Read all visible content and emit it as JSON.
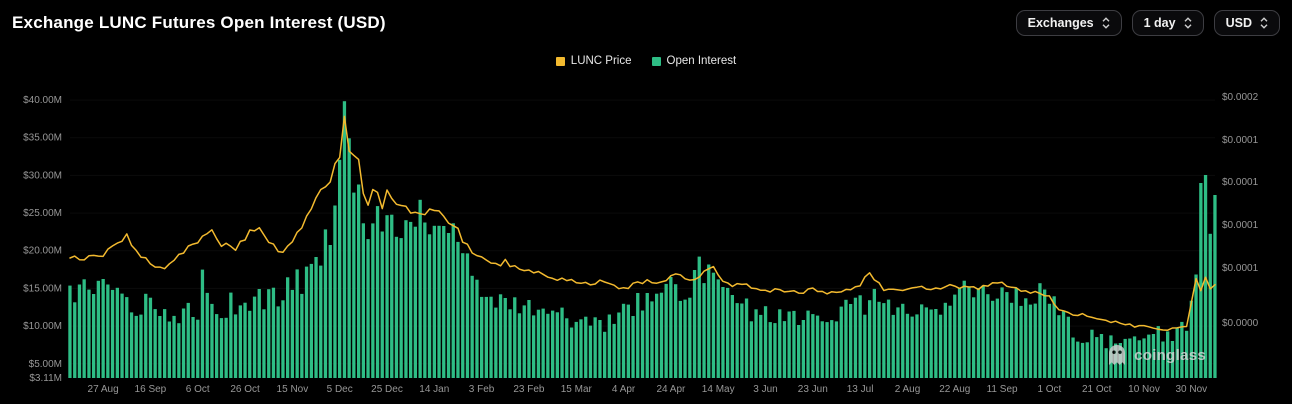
{
  "header": {
    "title": "Exchange LUNC Futures Open Interest (USD)",
    "controls": [
      {
        "label": "Exchanges"
      },
      {
        "label": "1 day"
      },
      {
        "label": "USD"
      }
    ]
  },
  "legend": [
    {
      "label": "LUNC Price",
      "color": "#F3BA2F"
    },
    {
      "label": "Open Interest",
      "color": "#2EBD85"
    }
  ],
  "watermark": {
    "text": "coinglass"
  },
  "chart_data": {
    "type": "bar",
    "title": "Exchange LUNC Futures Open Interest (USD)",
    "legend_position": "top-center",
    "grid": "off",
    "x_axis": {
      "unit": "days-from-first-tick",
      "domain_days": [
        -14,
        470
      ],
      "ticks": [
        {
          "label": "27 Aug",
          "day": 0
        },
        {
          "label": "16 Sep",
          "day": 20
        },
        {
          "label": "6 Oct",
          "day": 40
        },
        {
          "label": "26 Oct",
          "day": 60
        },
        {
          "label": "15 Nov",
          "day": 80
        },
        {
          "label": "5 Dec",
          "day": 100
        },
        {
          "label": "25 Dec",
          "day": 120
        },
        {
          "label": "14 Jan",
          "day": 140
        },
        {
          "label": "3 Feb",
          "day": 160
        },
        {
          "label": "23 Feb",
          "day": 180
        },
        {
          "label": "15 Mar",
          "day": 200
        },
        {
          "label": "4 Apr",
          "day": 220
        },
        {
          "label": "24 Apr",
          "day": 240
        },
        {
          "label": "14 May",
          "day": 260
        },
        {
          "label": "3 Jun",
          "day": 280
        },
        {
          "label": "23 Jun",
          "day": 300
        },
        {
          "label": "13 Jul",
          "day": 320
        },
        {
          "label": "2 Aug",
          "day": 340
        },
        {
          "label": "22 Aug",
          "day": 360
        },
        {
          "label": "11 Sep",
          "day": 380
        },
        {
          "label": "1 Oct",
          "day": 400
        },
        {
          "label": "21 Oct",
          "day": 420
        },
        {
          "label": "10 Nov",
          "day": 440
        },
        {
          "label": "30 Nov",
          "day": 460
        }
      ]
    },
    "y_left": {
      "unit": "USD millions (open interest)",
      "top_value": 42,
      "baseline_value": 3.11,
      "ticks": [
        {
          "label": "$40.00M",
          "value": 40
        },
        {
          "label": "$35.00M",
          "value": 35
        },
        {
          "label": "$30.00M",
          "value": 30
        },
        {
          "label": "$25.00M",
          "value": 25
        },
        {
          "label": "$20.00M",
          "value": 20
        },
        {
          "label": "$15.00M",
          "value": 15
        },
        {
          "label": "$10.00M",
          "value": 10
        },
        {
          "label": "$5.00M",
          "value": 5
        },
        {
          "label": "$3.11M",
          "value": 3.11
        }
      ]
    },
    "y_right": {
      "unit": "USD (LUNC price)",
      "top_value": 0.00018,
      "baseline_value": 0,
      "ticks": [
        {
          "label": "$0.0002",
          "value": 0.0001726
        },
        {
          "label": "$0.0001",
          "value": 0.0001462
        },
        {
          "label": "$0.0001",
          "value": 0.0001204
        },
        {
          "label": "$0.0001",
          "value": 9.4e-05
        },
        {
          "label": "$0.0001",
          "value": 6.76e-05
        },
        {
          "label": "$0.0000",
          "value": 3.38e-05
        }
      ]
    },
    "x": [
      0,
      5,
      10,
      15,
      20,
      25,
      30,
      35,
      40,
      42,
      45,
      50,
      55,
      60,
      65,
      70,
      75,
      80,
      85,
      90,
      95,
      100,
      102,
      104,
      105,
      107,
      110,
      112,
      115,
      118,
      120,
      125,
      130,
      135,
      140,
      145,
      150,
      155,
      160,
      165,
      170,
      175,
      180,
      185,
      190,
      195,
      200,
      205,
      210,
      215,
      220,
      225,
      230,
      235,
      240,
      243,
      245,
      250,
      255,
      258,
      260,
      265,
      270,
      275,
      280,
      285,
      290,
      295,
      300,
      305,
      310,
      315,
      320,
      323,
      325,
      330,
      335,
      340,
      345,
      350,
      355,
      360,
      363,
      365,
      370,
      375,
      380,
      385,
      390,
      395,
      400,
      403,
      405,
      410,
      415,
      420,
      425,
      430,
      435,
      440,
      445,
      450,
      455,
      458,
      460,
      462,
      464,
      466,
      468,
      470
    ],
    "series": [
      {
        "name": "Open Interest",
        "type": "bar",
        "axis": "left",
        "color": "#2EBD85",
        "values": [
          15,
          13.5,
          13,
          12.5,
          13,
          12,
          12,
          11.5,
          12,
          18.5,
          12.5,
          12.5,
          13,
          13,
          13.5,
          13.5,
          14,
          15.5,
          16.5,
          18,
          21,
          29,
          37.5,
          34,
          30,
          28,
          25,
          24,
          27,
          24,
          23,
          22.5,
          22,
          25.5,
          23,
          26.5,
          22,
          18,
          15.5,
          14,
          13,
          13,
          13.5,
          12.5,
          12,
          11,
          10.5,
          10,
          10,
          11,
          12,
          13,
          13.5,
          14.5,
          15.5,
          15,
          14,
          16.5,
          18,
          17.5,
          17.5,
          14,
          12.5,
          12,
          12,
          11.5,
          11.5,
          11,
          11,
          11.5,
          12,
          12,
          12.5,
          13.5,
          14.5,
          12,
          12,
          12.5,
          13,
          13,
          12.5,
          13,
          15,
          13.5,
          13.5,
          14,
          14.5,
          14.5,
          14.5,
          14,
          13.5,
          13,
          12.5,
          9,
          8.5,
          8.5,
          8,
          8,
          8.5,
          8.5,
          9,
          9,
          9.5,
          10,
          13,
          18,
          28,
          32,
          24,
          26
        ]
      },
      {
        "name": "LUNC Price",
        "type": "line",
        "axis": "right",
        "color": "#F3BA2F",
        "values": [
          7.36e-05,
          8.28e-05,
          8.74e-05,
          7.59e-05,
          7.12e-05,
          6.66e-05,
          7.36e-05,
          7.82e-05,
          8.51e-05,
          8.74e-05,
          9.21e-05,
          8.28e-05,
          7.82e-05,
          8.51e-05,
          9.44e-05,
          8.51e-05,
          7.82e-05,
          8.28e-05,
          9.67e-05,
          0.0001106,
          0.0001175,
          0.0001384,
          0.0001615,
          0.0001384,
          0.0001245,
          0.0001453,
          0.0001152,
          0.000106,
          0.0001175,
          0.000106,
          0.0001129,
          0.0001083,
          0.0001036,
          0.0001013,
          0.0001036,
          9.9e-05,
          8.98e-05,
          7.82e-05,
          7.36e-05,
          6.89e-05,
          7.12e-05,
          6.66e-05,
          6.66e-05,
          6.43e-05,
          6.2e-05,
          5.97e-05,
          5.97e-05,
          5.74e-05,
          5.97e-05,
          5.74e-05,
          5.51e-05,
          5.74e-05,
          5.97e-05,
          5.74e-05,
          6.2e-05,
          6.66e-05,
          6.2e-05,
          5.97e-05,
          6.66e-05,
          6.89e-05,
          6.2e-05,
          5.74e-05,
          5.74e-05,
          5.51e-05,
          5.27e-05,
          5.51e-05,
          5.27e-05,
          5.27e-05,
          5.51e-05,
          5.27e-05,
          5.27e-05,
          5.51e-05,
          5.74e-05,
          6.66e-05,
          6.2e-05,
          5.51e-05,
          5.27e-05,
          5.51e-05,
          5.74e-05,
          5.51e-05,
          5.51e-05,
          5.74e-05,
          5.51e-05,
          5.51e-05,
          5.51e-05,
          5.74e-05,
          5.74e-05,
          5.51e-05,
          5.27e-05,
          5.27e-05,
          5.04e-05,
          4.35e-05,
          4.12e-05,
          3.88e-05,
          3.88e-05,
          3.65e-05,
          3.42e-05,
          3.42e-05,
          3.19e-05,
          3.19e-05,
          3.1e-05,
          2.96e-05,
          3.1e-05,
          3.19e-05,
          4.58e-05,
          5.97e-05,
          5.27e-05,
          6.2e-05,
          5.41e-05,
          5.74e-05
        ]
      }
    ]
  }
}
